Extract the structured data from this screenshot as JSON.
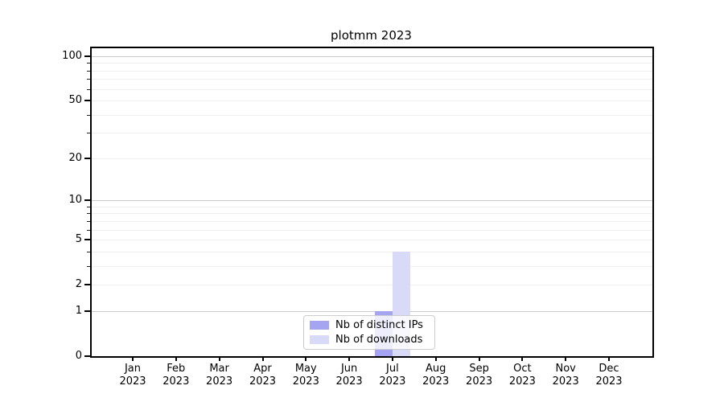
{
  "title": "plotmm 2023",
  "chart_data": {
    "type": "bar",
    "title": "plotmm 2023",
    "categories": [
      "Jan",
      "Feb",
      "Mar",
      "Apr",
      "May",
      "Jun",
      "Jul",
      "Aug",
      "Sep",
      "Oct",
      "Nov",
      "Dec"
    ],
    "year_label": "2023",
    "series": [
      {
        "name": "Nb of distinct IPs",
        "color": "#a4a4f0",
        "values": [
          0,
          0,
          0,
          0,
          0,
          0,
          1,
          0,
          0,
          0,
          0,
          0
        ]
      },
      {
        "name": "Nb of downloads",
        "color": "#d9d9f8",
        "values": [
          0,
          0,
          0,
          0,
          0,
          0,
          4,
          0,
          0,
          0,
          0,
          0
        ]
      }
    ],
    "xlabel": "",
    "ylabel": "",
    "y_scale": "log10(1+v)",
    "ylim": [
      0,
      113
    ],
    "y_major_tick_labels": [
      0,
      1,
      2,
      5,
      10,
      20,
      50,
      100
    ],
    "y_major_gridline_values": [
      1,
      10,
      100
    ],
    "y_minor_gridline_values": [
      2,
      3,
      4,
      5,
      6,
      7,
      8,
      9,
      20,
      30,
      40,
      50,
      60,
      70,
      80,
      90
    ],
    "grid": true,
    "legend_position": "lower center"
  },
  "colors": {
    "major_gridline": "#cccccc",
    "minor_gridline": "#efefef",
    "axis": "#000000",
    "background": "#ffffff"
  }
}
